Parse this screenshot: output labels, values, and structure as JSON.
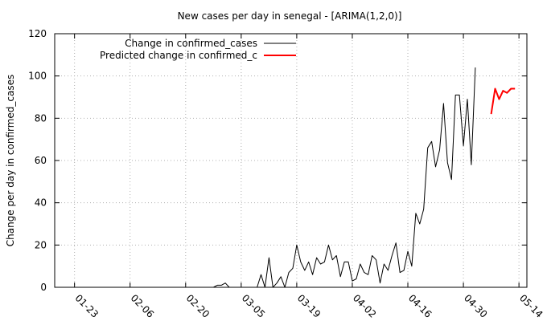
{
  "chart_data": {
    "type": "line",
    "title": "New cases per day in senegal -  [ARIMA(1,2,0)]",
    "xlabel": "",
    "ylabel": "Change per day in confirmed_cases",
    "ylim": [
      0,
      120
    ],
    "yticks": [
      0,
      20,
      40,
      60,
      80,
      100,
      120
    ],
    "xlim": [
      "01-18",
      "05-16"
    ],
    "xtick_labels": [
      "01-23",
      "02-06",
      "02-20",
      "03-05",
      "03-19",
      "04-02",
      "04-16",
      "04-30",
      "05-14"
    ],
    "grid": true,
    "legend_position": "top-left",
    "series": [
      {
        "name": "Change in confirmed_cases",
        "color": "#000000",
        "x": [
          "02-27",
          "02-28",
          "02-29",
          "03-01",
          "03-02",
          "03-03",
          "03-04",
          "03-05",
          "03-06",
          "03-07",
          "03-08",
          "03-09",
          "03-10",
          "03-11",
          "03-12",
          "03-13",
          "03-14",
          "03-15",
          "03-16",
          "03-17",
          "03-18",
          "03-19",
          "03-20",
          "03-21",
          "03-22",
          "03-23",
          "03-24",
          "03-25",
          "03-26",
          "03-27",
          "03-28",
          "03-29",
          "03-30",
          "03-31",
          "04-01",
          "04-02",
          "04-03",
          "04-04",
          "04-05",
          "04-06",
          "04-07",
          "04-08",
          "04-09",
          "04-10",
          "04-11",
          "04-12",
          "04-13",
          "04-14",
          "04-15",
          "04-16",
          "04-17",
          "04-18",
          "04-19",
          "04-20",
          "04-21",
          "04-22",
          "04-23",
          "04-24",
          "04-25",
          "04-26",
          "04-27",
          "04-28",
          "04-29",
          "04-30",
          "05-01",
          "05-02",
          "05-03",
          "05-04",
          "05-05",
          "05-06"
        ],
        "values": [
          0,
          1,
          1,
          2,
          0,
          0,
          0,
          0,
          0,
          0,
          0,
          0,
          6,
          0,
          14,
          0,
          2,
          5,
          0,
          7,
          9,
          20,
          12,
          8,
          12,
          6,
          14,
          11,
          12,
          20,
          13,
          15,
          5,
          12,
          12,
          3,
          4,
          11,
          7,
          6,
          15,
          13,
          2,
          11,
          8,
          15,
          21,
          7,
          8,
          17,
          10,
          35,
          30,
          37,
          66,
          69,
          57,
          65,
          87,
          59,
          51,
          91,
          91,
          67,
          89,
          58,
          104,
          null,
          null,
          null
        ]
      },
      {
        "name": "Predicted change in confirmed_c",
        "color": "#ff0000",
        "x": [
          "05-07",
          "05-08",
          "05-09",
          "05-10",
          "05-11",
          "05-12",
          "05-13"
        ],
        "values": [
          82,
          94,
          89,
          93,
          92,
          94,
          94
        ]
      }
    ]
  }
}
